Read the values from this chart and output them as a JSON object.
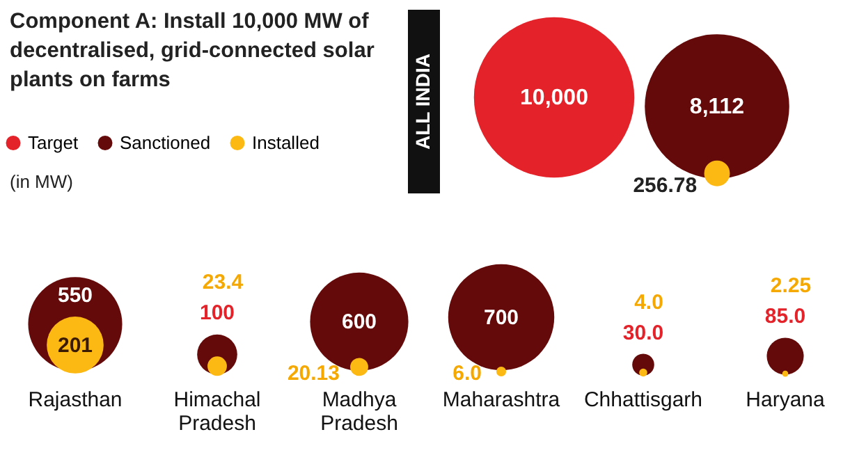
{
  "chart_data": {
    "type": "other",
    "title": "Component A: Install 10,000 MW of decentralised, grid-connected solar plants on farms",
    "annotations": [
      "(in MW)"
    ],
    "categories": [
      "ALL INDIA",
      "Rajasthan",
      "Himachal Pradesh",
      "Madhya Pradesh",
      "Maharashtra",
      "Chhattisgarh",
      "Haryana"
    ],
    "series": [
      {
        "name": "Target",
        "color": "#e32229",
        "values": [
          10000,
          null,
          null,
          null,
          null,
          null,
          null
        ],
        "value_labels": [
          "10,000",
          null,
          null,
          null,
          null,
          null,
          null
        ]
      },
      {
        "name": "Sanctioned",
        "color": "#650a0a",
        "values": [
          8112,
          550,
          100,
          600,
          700,
          30.0,
          85.0
        ],
        "value_labels": [
          "8,112",
          "550",
          "100",
          "600",
          "700",
          "30.0",
          "85.0"
        ]
      },
      {
        "name": "Installed",
        "color": "#fdb913",
        "values": [
          256.78,
          201,
          23.4,
          20.13,
          6.0,
          4.0,
          2.25
        ],
        "value_labels": [
          "256.78",
          "201",
          "23.4",
          "20.13",
          "6.0",
          "4.0",
          "2.25"
        ]
      }
    ],
    "data_labels": true,
    "legend": "top left"
  }
}
